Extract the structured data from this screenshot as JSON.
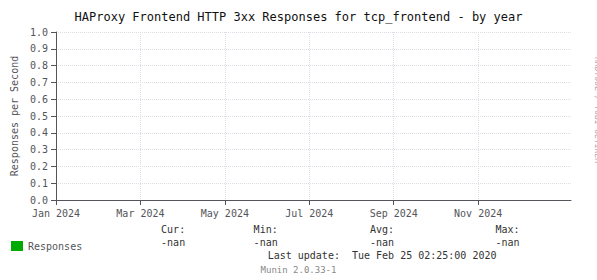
{
  "chart_data": {
    "type": "line",
    "title": "HAProxy Frontend HTTP 3xx Responses for tcp_frontend - by year",
    "ylabel": "Responses per Second",
    "x": [],
    "series": [
      {
        "name": "Responses",
        "color": "#00aa00",
        "values": []
      }
    ],
    "xlim": [
      0,
      12.2
    ],
    "xticks": [
      {
        "value": 0,
        "label": "Jan 2024"
      },
      {
        "value": 2,
        "label": "Mar 2024"
      },
      {
        "value": 4,
        "label": "May 2024"
      },
      {
        "value": 6,
        "label": "Jul 2024"
      },
      {
        "value": 8,
        "label": "Sep 2024"
      },
      {
        "value": 10,
        "label": "Nov 2024"
      }
    ],
    "ylim": [
      0.0,
      1.0
    ],
    "yticks": [
      {
        "value": 0.0,
        "label": "0.0"
      },
      0.1,
      0.2,
      0.3,
      0.4,
      0.5,
      0.6,
      0.7,
      0.8,
      0.9,
      {
        "value": 1.0,
        "label": "1.0"
      }
    ],
    "grid": true,
    "legend": "bottom left",
    "annotations": [
      "Cur:",
      "-nan",
      "Min:",
      "-nan",
      "Avg:",
      "-nan",
      "Max:",
      "-nan",
      "Last update:  Tue Feb 25 02:25:00 2020",
      "Munin 2.0.33-1",
      "RRDTOOL / TOBI OETIKER"
    ]
  }
}
